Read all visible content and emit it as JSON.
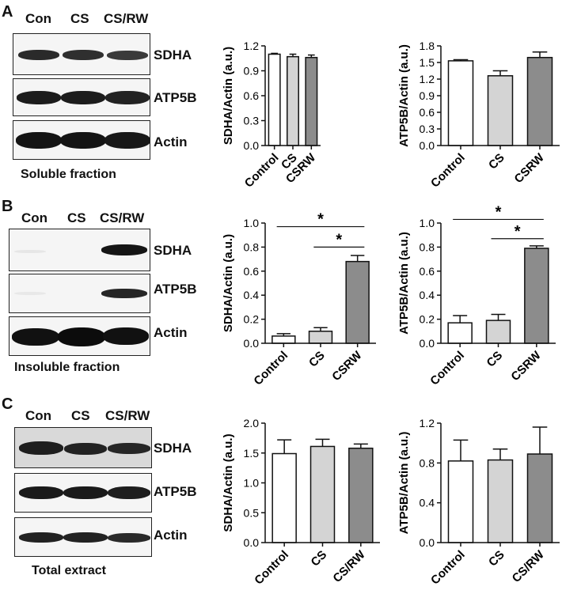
{
  "panels": [
    {
      "letter": "A",
      "lanes": [
        "Con",
        "CS",
        "CS/RW"
      ],
      "blots": [
        "SDHA",
        "ATP5B",
        "Actin"
      ],
      "caption": "Soluble fraction"
    },
    {
      "letter": "B",
      "lanes": [
        "Con",
        "CS",
        "CS/RW"
      ],
      "blots": [
        "SDHA",
        "ATP5B",
        "Actin"
      ],
      "caption": "Insoluble fraction"
    },
    {
      "letter": "C",
      "lanes": [
        "Con",
        "CS",
        "CS/RW"
      ],
      "blots": [
        "SDHA",
        "ATP5B",
        "Actin"
      ],
      "caption": "Total extract"
    }
  ],
  "bar_colors": [
    "#ffffff",
    "#d4d4d4",
    "#8c8c8c"
  ],
  "significance_mark": "*",
  "chart_data": [
    {
      "type": "bar",
      "panel": "A",
      "categories": [
        "Control",
        "CS",
        "CSRW"
      ],
      "values": [
        1.1,
        1.07,
        1.06
      ],
      "errors": [
        0.01,
        0.03,
        0.03
      ],
      "ylabel": "SDHA/Actin (a.u.)",
      "ylim": [
        0,
        1.2
      ],
      "ticks": [
        "0.0",
        "0.3",
        "0.6",
        "0.9",
        "1.2"
      ],
      "significance": []
    },
    {
      "type": "bar",
      "panel": "A",
      "categories": [
        "Control",
        "CS",
        "CSRW"
      ],
      "values": [
        1.53,
        1.26,
        1.59
      ],
      "errors": [
        0.02,
        0.09,
        0.1
      ],
      "ylabel": "ATP5B/Actin (a.u.)",
      "ylim": [
        0,
        1.8
      ],
      "ticks": [
        "0.0",
        "0.3",
        "0.6",
        "0.9",
        "1.2",
        "1.5",
        "1.8"
      ],
      "significance": []
    },
    {
      "type": "bar",
      "panel": "B",
      "categories": [
        "Control",
        "CS",
        "CSRW"
      ],
      "values": [
        0.06,
        0.1,
        0.68
      ],
      "errors": [
        0.02,
        0.03,
        0.05
      ],
      "ylabel": "SDHA/Actin (a.u.)",
      "ylim": [
        0,
        1.0
      ],
      "ticks": [
        "0.0",
        "0.2",
        "0.4",
        "0.6",
        "0.8",
        "1.0"
      ],
      "significance": [
        {
          "from": 0,
          "to": 2,
          "y": 0.97
        },
        {
          "from": 1,
          "to": 2,
          "y": 0.8
        }
      ]
    },
    {
      "type": "bar",
      "panel": "B",
      "categories": [
        "Control",
        "CS",
        "CSRW"
      ],
      "values": [
        0.17,
        0.19,
        0.79
      ],
      "errors": [
        0.06,
        0.05,
        0.02
      ],
      "ylabel": "ATP5B/Actin (a.u.)",
      "ylim": [
        0,
        1.0
      ],
      "ticks": [
        "0.0",
        "0.2",
        "0.4",
        "0.6",
        "0.8",
        "1.0"
      ],
      "significance": [
        {
          "from": 0,
          "to": 2,
          "y": 1.03
        },
        {
          "from": 1,
          "to": 2,
          "y": 0.87
        }
      ]
    },
    {
      "type": "bar",
      "panel": "C",
      "categories": [
        "Control",
        "CS",
        "CS/RW"
      ],
      "values": [
        1.49,
        1.61,
        1.58
      ],
      "errors": [
        0.23,
        0.12,
        0.07
      ],
      "ylabel": "SDHA/Actin (a.u.)",
      "ylim": [
        0,
        2.0
      ],
      "ticks": [
        "0.0",
        "0.5",
        "1.0",
        "1.5",
        "2.0"
      ],
      "significance": []
    },
    {
      "type": "bar",
      "panel": "C",
      "categories": [
        "Control",
        "CS",
        "CS/RW"
      ],
      "values": [
        0.82,
        0.83,
        0.89
      ],
      "errors": [
        0.21,
        0.11,
        0.27
      ],
      "ylabel": "ATP5B/Actin (a.u.)",
      "ylim": [
        0,
        1.2
      ],
      "ticks": [
        "0.0",
        "0.4",
        "0.8",
        "1.2"
      ],
      "significance": []
    }
  ]
}
